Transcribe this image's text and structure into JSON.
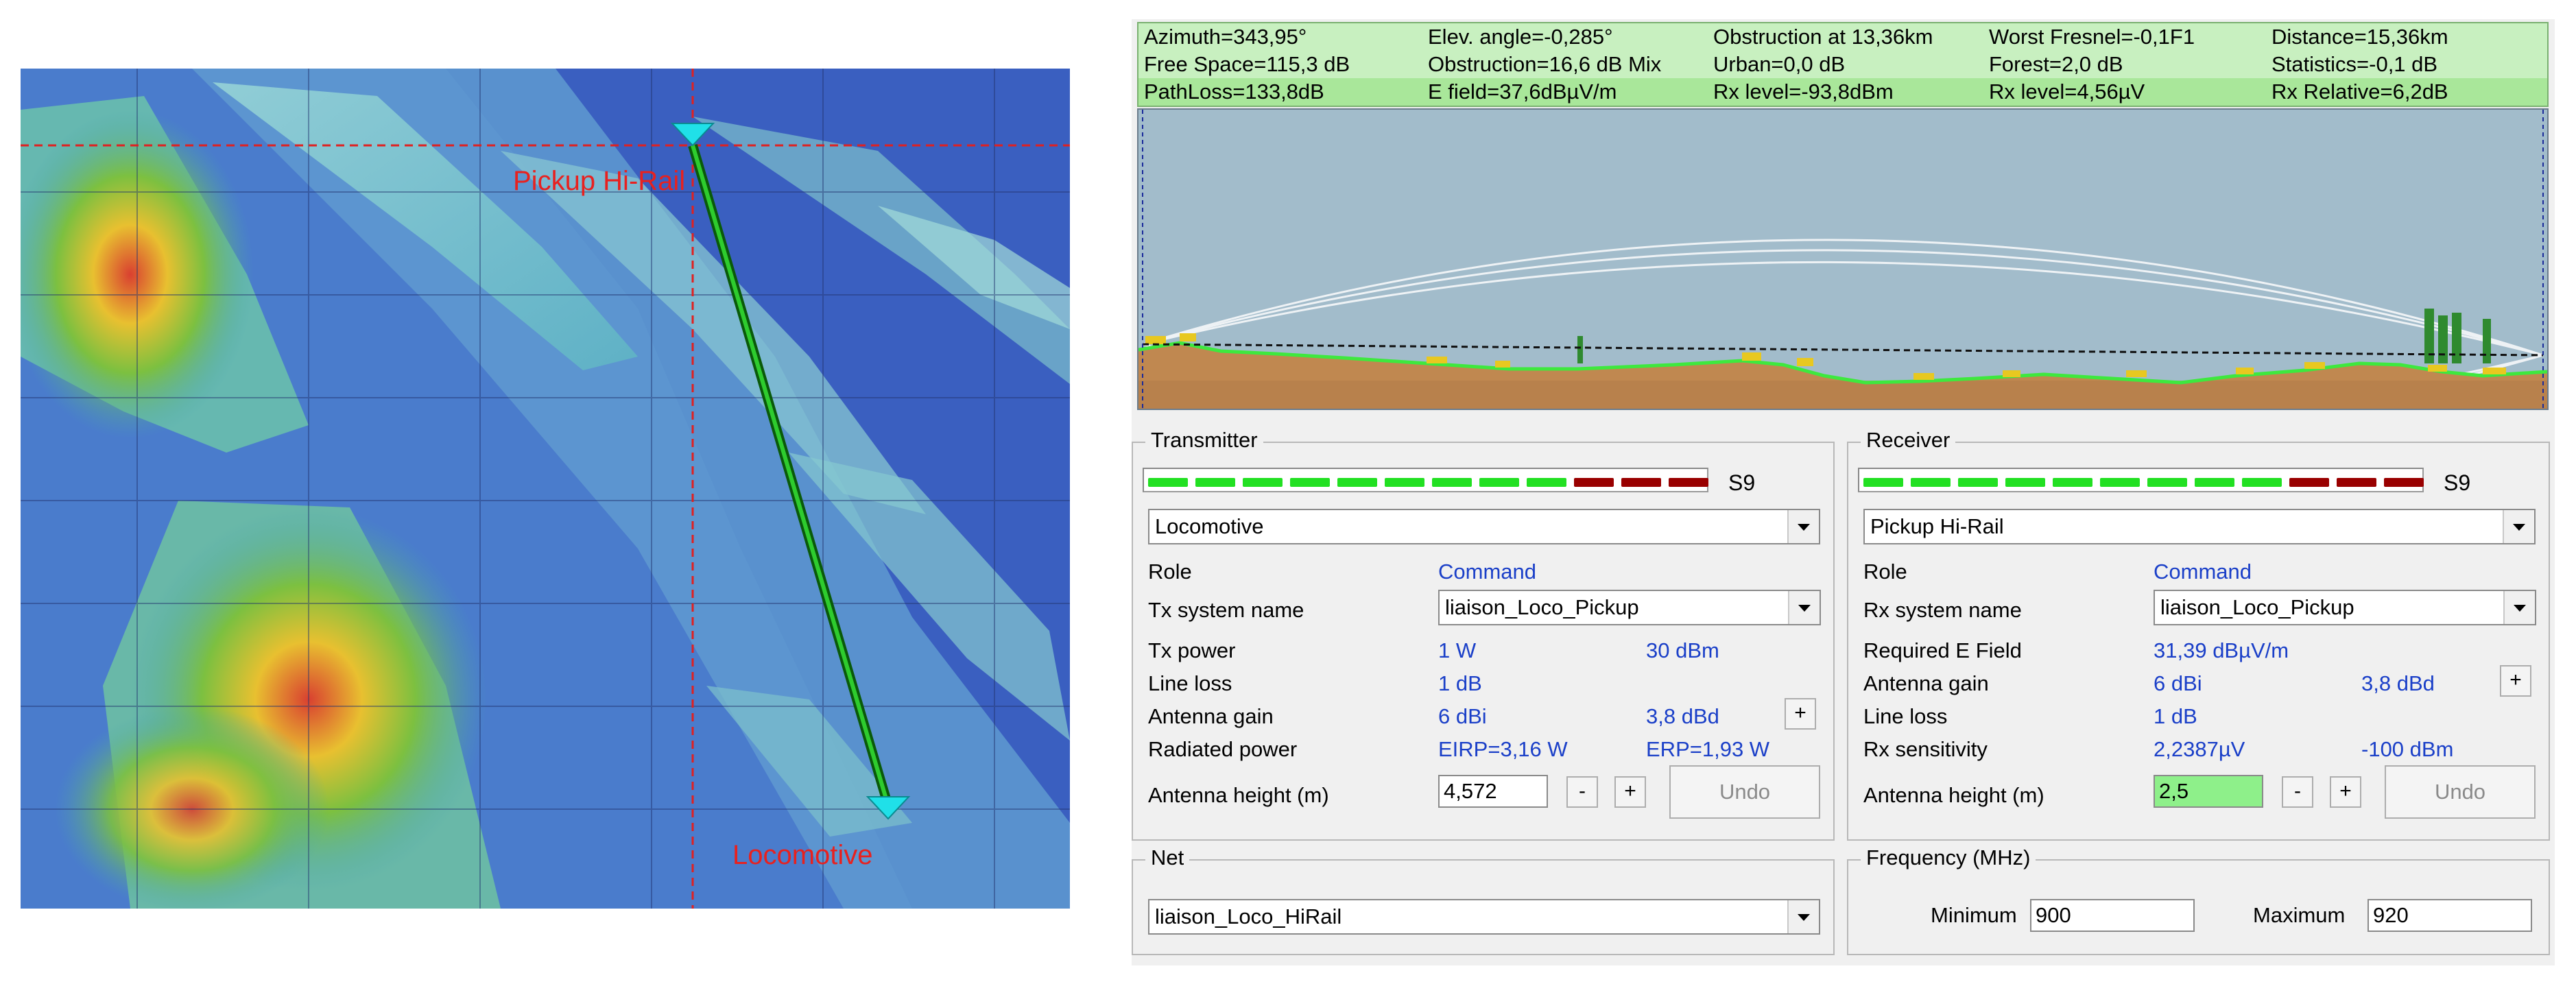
{
  "map": {
    "pickup_label": "Pickup Hi-Rail",
    "loco_label": "Locomotive"
  },
  "stats": {
    "row1": [
      "Azimuth=343,95°",
      "Elev. angle=-0,285°",
      "Obstruction at 13,36km",
      "Worst Fresnel=-0,1F1",
      "Distance=15,36km"
    ],
    "row2": [
      "Free Space=115,3 dB",
      "Obstruction=16,6 dB Mix",
      "Urban=0,0 dB",
      "Forest=2,0 dB",
      "Statistics=-0,1 dB"
    ],
    "row3": [
      "PathLoss=133,8dB",
      "E field=37,6dBµV/m",
      "Rx level=-93,8dBm",
      "Rx level=4,56µV",
      "Rx Relative=6,2dB"
    ]
  },
  "transmitter": {
    "title": "Transmitter",
    "s_level": "S9",
    "signal_on": 9,
    "signal_red": 3,
    "station": "Locomotive",
    "role_label": "Role",
    "role_value": "Command",
    "system_label": "Tx system name",
    "system_value": "liaison_Loco_Pickup",
    "power_label": "Tx power",
    "power_w": "1 W",
    "power_dbm": "30 dBm",
    "line_loss_label": "Line loss",
    "line_loss_value": "1 dB",
    "gain_label": "Antenna gain",
    "gain_dbi": "6 dBi",
    "gain_dbd": "3,8 dBd",
    "plus_label": "+",
    "radiated_label": "Radiated power",
    "eirp": "EIRP=3,16 W",
    "erp": "ERP=1,93 W",
    "height_label": "Antenna height (m)",
    "height_value": "4,572",
    "minus_label": "-",
    "undo_label": "Undo"
  },
  "receiver": {
    "title": "Receiver",
    "s_level": "S9",
    "signal_on": 9,
    "signal_red": 3,
    "station": "Pickup Hi-Rail",
    "role_label": "Role",
    "role_value": "Command",
    "system_label": "Rx system name",
    "system_value": "liaison_Loco_Pickup",
    "efield_label": "Required E Field",
    "efield_value": "31,39 dBµV/m",
    "gain_label": "Antenna gain",
    "gain_dbi": "6 dBi",
    "gain_dbd": "3,8 dBd",
    "plus_label": "+",
    "line_loss_label": "Line loss",
    "line_loss_value": "1 dB",
    "sens_label": "Rx sensitivity",
    "sens_uv": "2,2387µV",
    "sens_dbm": "-100 dBm",
    "height_label": "Antenna height (m)",
    "height_value": "2,5",
    "minus_label": "-",
    "undo_label": "Undo"
  },
  "net": {
    "title": "Net",
    "value": "liaison_Loco_HiRail"
  },
  "frequency": {
    "title": "Frequency (MHz)",
    "min_label": "Minimum",
    "min_value": "900",
    "max_label": "Maximum",
    "max_value": "920"
  }
}
